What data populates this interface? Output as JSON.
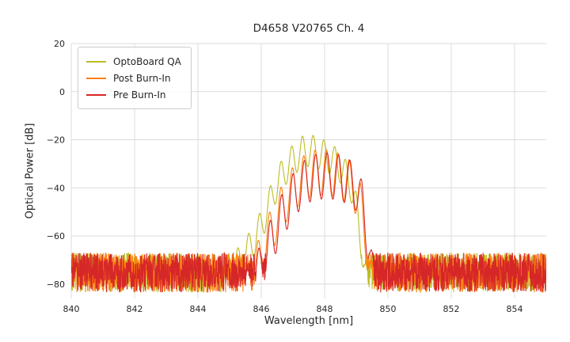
{
  "chart_data": {
    "type": "line",
    "title": "D4658 V20765 Ch. 4",
    "xlabel": "Wavelength [nm]",
    "ylabel": "Optical Power [dB]",
    "xlim": [
      840,
      855
    ],
    "ylim": [
      -86,
      20
    ],
    "xticks": [
      840,
      842,
      844,
      846,
      848,
      850,
      852,
      854
    ],
    "yticks": [
      20,
      0,
      -20,
      -40,
      -60,
      -80
    ],
    "grid": true,
    "grid_color": "#dcdcdc",
    "text_color": "#262626",
    "background": "#ffffff",
    "legend_position": "upper left",
    "sample_step_nm": 0.0075,
    "series": [
      {
        "name": "OptoBoard QA",
        "color": "#bcbd22",
        "noise_band_db": [
          -83.5,
          -67
        ],
        "peak_nm": 847.5,
        "peak_db": -18,
        "signal_range_nm": [
          844.2,
          849.4
        ],
        "mode_spacing_nm": 0.34,
        "mode_phase_nm": 847.3,
        "mode_depth_db": 13,
        "envelope": [
          [
            844.2,
            -78
          ],
          [
            844.5,
            -73
          ],
          [
            844.9,
            -70
          ],
          [
            845.2,
            -66
          ],
          [
            845.5,
            -61
          ],
          [
            845.8,
            -55
          ],
          [
            846.1,
            -46
          ],
          [
            846.4,
            -35
          ],
          [
            846.7,
            -27
          ],
          [
            847.0,
            -22
          ],
          [
            847.3,
            -18.5
          ],
          [
            847.6,
            -18
          ],
          [
            847.9,
            -19.5
          ],
          [
            848.2,
            -21.5
          ],
          [
            848.5,
            -25
          ],
          [
            848.8,
            -31
          ],
          [
            849.0,
            -42
          ],
          [
            849.15,
            -56
          ],
          [
            849.3,
            -70
          ],
          [
            849.4,
            -80
          ]
        ]
      },
      {
        "name": "Post Burn-In",
        "color": "#ff7f0e",
        "noise_band_db": [
          -83.5,
          -67
        ],
        "peak_nm": 848.0,
        "peak_db": -24,
        "signal_range_nm": [
          845.3,
          849.55
        ],
        "mode_spacing_nm": 0.36,
        "mode_phase_nm": 847.7,
        "mode_depth_db": 19,
        "envelope": [
          [
            845.3,
            -78
          ],
          [
            845.6,
            -70
          ],
          [
            845.9,
            -62
          ],
          [
            846.2,
            -52
          ],
          [
            846.5,
            -43
          ],
          [
            846.8,
            -35
          ],
          [
            847.1,
            -29.5
          ],
          [
            847.4,
            -26
          ],
          [
            847.7,
            -24.3
          ],
          [
            848.0,
            -24.0
          ],
          [
            848.3,
            -24.8
          ],
          [
            848.6,
            -26.5
          ],
          [
            848.9,
            -29.5
          ],
          [
            849.1,
            -36
          ],
          [
            849.3,
            -50
          ],
          [
            849.45,
            -68
          ],
          [
            849.55,
            -80
          ]
        ]
      },
      {
        "name": "Pre Burn-In",
        "color": "#d62728",
        "noise_band_db": [
          -83.5,
          -67
        ],
        "peak_nm": 848.1,
        "peak_db": -25.4,
        "signal_range_nm": [
          845.4,
          849.6
        ],
        "mode_spacing_nm": 0.36,
        "mode_phase_nm": 847.72,
        "mode_depth_db": 19,
        "envelope": [
          [
            845.4,
            -78
          ],
          [
            845.7,
            -71
          ],
          [
            846.0,
            -63
          ],
          [
            846.3,
            -53
          ],
          [
            846.6,
            -44
          ],
          [
            846.9,
            -36
          ],
          [
            847.2,
            -30.5
          ],
          [
            847.5,
            -27
          ],
          [
            847.8,
            -25.8
          ],
          [
            848.1,
            -25.4
          ],
          [
            848.4,
            -26
          ],
          [
            848.7,
            -27.5
          ],
          [
            849.0,
            -30.5
          ],
          [
            849.2,
            -38
          ],
          [
            849.4,
            -54
          ],
          [
            849.55,
            -72
          ],
          [
            849.6,
            -80
          ]
        ]
      }
    ]
  }
}
